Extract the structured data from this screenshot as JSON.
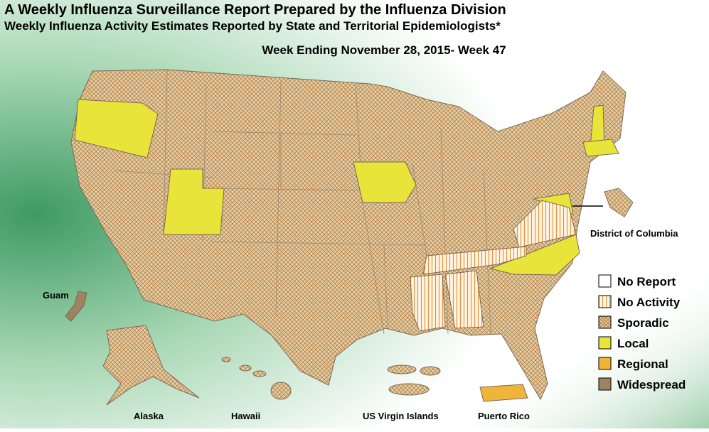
{
  "header": {
    "title": "A Weekly Influenza Surveillance Report Prepared by the Influenza Division",
    "subtitle": "Weekly Influenza Activity Estimates Reported by State and Territorial Epidemiologists*",
    "week": "Week Ending November 28, 2015- Week 47"
  },
  "labels": {
    "dc": "District of Columbia",
    "guam": "Guam",
    "alaska": "Alaska",
    "hawaii": "Hawaii",
    "usvi": "US Virgin Islands",
    "puerto_rico": "Puerto Rico"
  },
  "legend": [
    {
      "label": "No Report",
      "color": "#ffffff",
      "pattern": "solid"
    },
    {
      "label": "No Activity",
      "color": "#e8903a",
      "pattern": "stripes"
    },
    {
      "label": "Sporadic",
      "color": "#b8804a",
      "pattern": "crosshatch"
    },
    {
      "label": "Local",
      "color": "#e9e43a",
      "pattern": "solid"
    },
    {
      "label": "Regional",
      "color": "#f0b43a",
      "pattern": "solid"
    },
    {
      "label": "Widespread",
      "color": "#9f8361",
      "pattern": "solid"
    }
  ]
}
